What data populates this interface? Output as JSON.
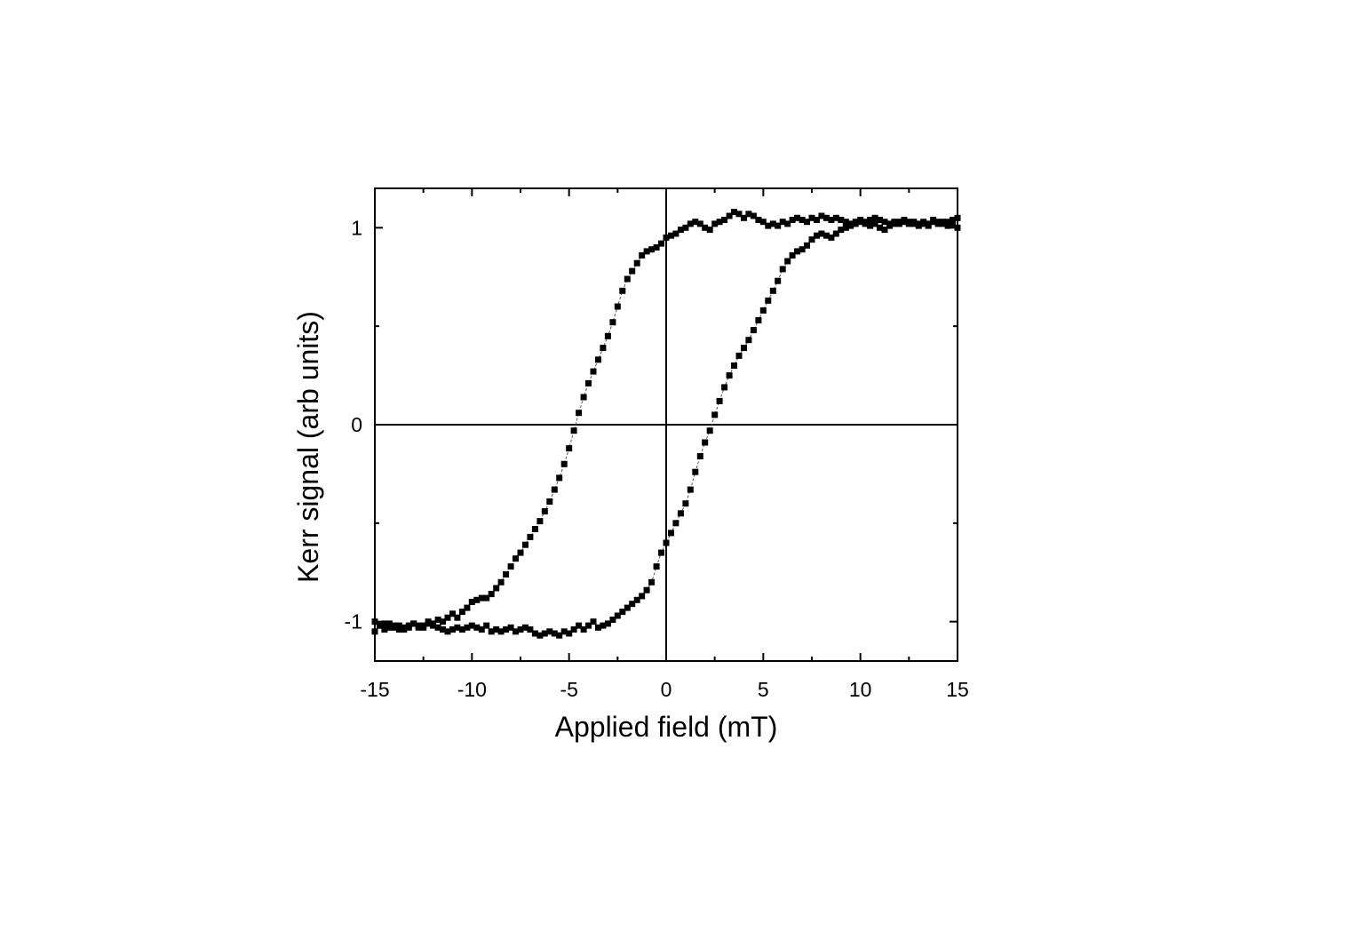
{
  "chart_data": {
    "type": "scatter",
    "title": "",
    "xlabel": "Applied field (mT)",
    "ylabel": "Kerr signal (arb units)",
    "xlim": [
      -15,
      15
    ],
    "ylim": [
      -1.2,
      1.2
    ],
    "x_ticks": [
      -15,
      -10,
      -5,
      0,
      5,
      10,
      15
    ],
    "x_tick_labels": [
      "-15",
      "-10",
      "-5",
      "0",
      "5",
      "10",
      "15"
    ],
    "y_ticks": [
      -1,
      0,
      1
    ],
    "y_tick_labels": [
      "-1",
      "0",
      "1"
    ],
    "grid": false,
    "zero_lines": true,
    "marker": "square",
    "marker_color": "#000000",
    "series": [
      {
        "x": [
          -15.0,
          -14.75,
          -14.5,
          -14.25,
          -14.0,
          -13.75,
          -13.5,
          -13.25,
          -13.0,
          -12.75,
          -12.5,
          -12.25,
          -12.0,
          -11.75,
          -11.5,
          -11.25,
          -11.0,
          -10.75,
          -10.5,
          -10.25,
          -10.0,
          -9.75,
          -9.5,
          -9.25,
          -9.0,
          -8.75,
          -8.5,
          -8.25,
          -8.0,
          -7.75,
          -7.5,
          -7.25,
          -7.0,
          -6.75,
          -6.5,
          -6.25,
          -6.0,
          -5.75,
          -5.5,
          -5.25,
          -5.0,
          -4.75,
          -4.5,
          -4.25,
          -4.0,
          -3.75,
          -3.5,
          -3.25,
          -3.0,
          -2.75,
          -2.5,
          -2.25,
          -2.0,
          -1.75,
          -1.5,
          -1.25,
          -1.0,
          -0.75,
          -0.5,
          -0.25,
          0.0,
          0.25,
          0.5,
          0.75,
          1.0,
          1.25,
          1.5,
          1.75,
          2.0,
          2.25,
          2.5,
          2.75,
          3.0,
          3.25,
          3.5,
          3.75,
          4.0,
          4.25,
          4.5,
          4.75,
          5.0,
          5.25,
          5.5,
          5.75,
          6.0,
          6.25,
          6.5,
          6.75,
          7.0,
          7.25,
          7.5,
          7.75,
          8.0,
          8.25,
          8.5,
          8.75,
          9.0,
          9.25,
          9.5,
          9.75,
          10.0,
          10.25,
          10.5,
          10.75,
          11.0,
          11.25,
          11.5,
          11.75,
          12.0,
          12.25,
          12.5,
          12.75,
          13.0,
          13.25,
          13.5,
          13.75,
          14.0,
          14.25,
          14.5,
          14.75,
          15.0
        ],
        "y": [
          -1.05,
          -1.02,
          -1.04,
          -1.01,
          -1.03,
          -1.02,
          -1.04,
          -1.03,
          -1.01,
          -1.03,
          -1.02,
          -1.0,
          -1.01,
          -0.99,
          -1.0,
          -0.98,
          -0.96,
          -0.98,
          -0.95,
          -0.93,
          -0.9,
          -0.89,
          -0.88,
          -0.88,
          -0.86,
          -0.83,
          -0.8,
          -0.76,
          -0.72,
          -0.68,
          -0.65,
          -0.61,
          -0.57,
          -0.53,
          -0.49,
          -0.44,
          -0.39,
          -0.33,
          -0.27,
          -0.2,
          -0.12,
          -0.03,
          0.06,
          0.14,
          0.21,
          0.27,
          0.33,
          0.39,
          0.45,
          0.52,
          0.6,
          0.68,
          0.74,
          0.78,
          0.82,
          0.86,
          0.88,
          0.89,
          0.9,
          0.92,
          0.95,
          0.96,
          0.97,
          0.99,
          1.0,
          1.02,
          1.03,
          1.02,
          1.0,
          0.99,
          1.02,
          1.03,
          1.04,
          1.06,
          1.08,
          1.07,
          1.05,
          1.07,
          1.06,
          1.04,
          1.03,
          1.01,
          1.02,
          1.01,
          1.03,
          1.02,
          1.04,
          1.05,
          1.04,
          1.03,
          1.05,
          1.04,
          1.06,
          1.05,
          1.04,
          1.05,
          1.04,
          1.03,
          1.02,
          1.03,
          1.04,
          1.03,
          1.04,
          1.05,
          1.04,
          1.03,
          1.02,
          1.03,
          1.02,
          1.03,
          1.02,
          1.03,
          1.02,
          1.03,
          1.02,
          1.04,
          1.03,
          1.02,
          1.03,
          1.04,
          1.05
        ]
      },
      {
        "x": [
          -15.0,
          -14.75,
          -14.5,
          -14.25,
          -14.0,
          -13.75,
          -13.5,
          -13.25,
          -13.0,
          -12.75,
          -12.5,
          -12.25,
          -12.0,
          -11.75,
          -11.5,
          -11.25,
          -11.0,
          -10.75,
          -10.5,
          -10.25,
          -10.0,
          -9.75,
          -9.5,
          -9.25,
          -9.0,
          -8.75,
          -8.5,
          -8.25,
          -8.0,
          -7.75,
          -7.5,
          -7.25,
          -7.0,
          -6.75,
          -6.5,
          -6.25,
          -6.0,
          -5.75,
          -5.5,
          -5.25,
          -5.0,
          -4.75,
          -4.5,
          -4.25,
          -4.0,
          -3.75,
          -3.5,
          -3.25,
          -3.0,
          -2.75,
          -2.5,
          -2.25,
          -2.0,
          -1.75,
          -1.5,
          -1.25,
          -1.0,
          -0.75,
          -0.5,
          -0.25,
          0.0,
          0.25,
          0.5,
          0.75,
          1.0,
          1.25,
          1.5,
          1.75,
          2.0,
          2.25,
          2.5,
          2.75,
          3.0,
          3.25,
          3.5,
          3.75,
          4.0,
          4.25,
          4.5,
          4.75,
          5.0,
          5.25,
          5.5,
          5.75,
          6.0,
          6.25,
          6.5,
          6.75,
          7.0,
          7.25,
          7.5,
          7.75,
          8.0,
          8.25,
          8.5,
          8.75,
          9.0,
          9.25,
          9.5,
          9.75,
          10.0,
          10.25,
          10.5,
          10.75,
          11.0,
          11.25,
          11.5,
          11.75,
          12.0,
          12.25,
          12.5,
          12.75,
          13.0,
          13.25,
          13.5,
          13.75,
          14.0,
          14.25,
          14.5,
          14.75,
          15.0
        ],
        "y": [
          -1.0,
          -1.02,
          -1.01,
          -1.03,
          -1.02,
          -1.04,
          -1.03,
          -1.02,
          -1.01,
          -1.02,
          -1.03,
          -1.01,
          -1.02,
          -1.03,
          -1.04,
          -1.05,
          -1.04,
          -1.03,
          -1.04,
          -1.03,
          -1.02,
          -1.03,
          -1.04,
          -1.02,
          -1.05,
          -1.04,
          -1.05,
          -1.04,
          -1.03,
          -1.05,
          -1.04,
          -1.03,
          -1.04,
          -1.06,
          -1.07,
          -1.06,
          -1.05,
          -1.06,
          -1.07,
          -1.05,
          -1.06,
          -1.04,
          -1.02,
          -1.04,
          -1.02,
          -1.0,
          -1.03,
          -1.02,
          -1.01,
          -0.99,
          -0.97,
          -0.95,
          -0.93,
          -0.91,
          -0.89,
          -0.87,
          -0.84,
          -0.8,
          -0.72,
          -0.65,
          -0.6,
          -0.55,
          -0.5,
          -0.45,
          -0.4,
          -0.33,
          -0.24,
          -0.16,
          -0.09,
          -0.03,
          0.05,
          0.12,
          0.19,
          0.25,
          0.3,
          0.35,
          0.39,
          0.43,
          0.48,
          0.53,
          0.58,
          0.63,
          0.68,
          0.73,
          0.79,
          0.83,
          0.86,
          0.88,
          0.89,
          0.91,
          0.94,
          0.96,
          0.97,
          0.96,
          0.95,
          0.97,
          0.99,
          1.0,
          1.01,
          1.02,
          1.03,
          1.02,
          1.01,
          1.02,
          1.0,
          0.99,
          1.01,
          1.02,
          1.03,
          1.04,
          1.03,
          1.02,
          1.01,
          1.02,
          1.01,
          1.03,
          1.02,
          1.03,
          1.01,
          1.02,
          1.0
        ]
      }
    ]
  }
}
